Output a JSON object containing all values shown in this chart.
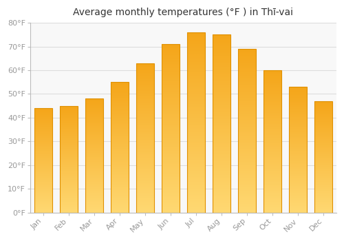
{
  "title": "Average monthly temperatures (°F ) in Thī-vai",
  "months": [
    "Jan",
    "Feb",
    "Mar",
    "Apr",
    "May",
    "Jun",
    "Jul",
    "Aug",
    "Sep",
    "Oct",
    "Nov",
    "Dec"
  ],
  "values": [
    44,
    45,
    48,
    55,
    63,
    71,
    76,
    75,
    69,
    60,
    53,
    47
  ],
  "ylim": [
    0,
    80
  ],
  "yticks": [
    0,
    10,
    20,
    30,
    40,
    50,
    60,
    70,
    80
  ],
  "ytick_labels": [
    "0°F",
    "10°F",
    "20°F",
    "30°F",
    "40°F",
    "50°F",
    "60°F",
    "70°F",
    "80°F"
  ],
  "background_color": "#FFFFFF",
  "plot_bg_color": "#F8F8F8",
  "grid_color": "#DDDDDD",
  "bar_color_bottom": "#FFD070",
  "bar_color_top": "#F5A800",
  "bar_edge_color": "#E09000",
  "title_fontsize": 10,
  "tick_fontsize": 8,
  "tick_color": "#999999"
}
